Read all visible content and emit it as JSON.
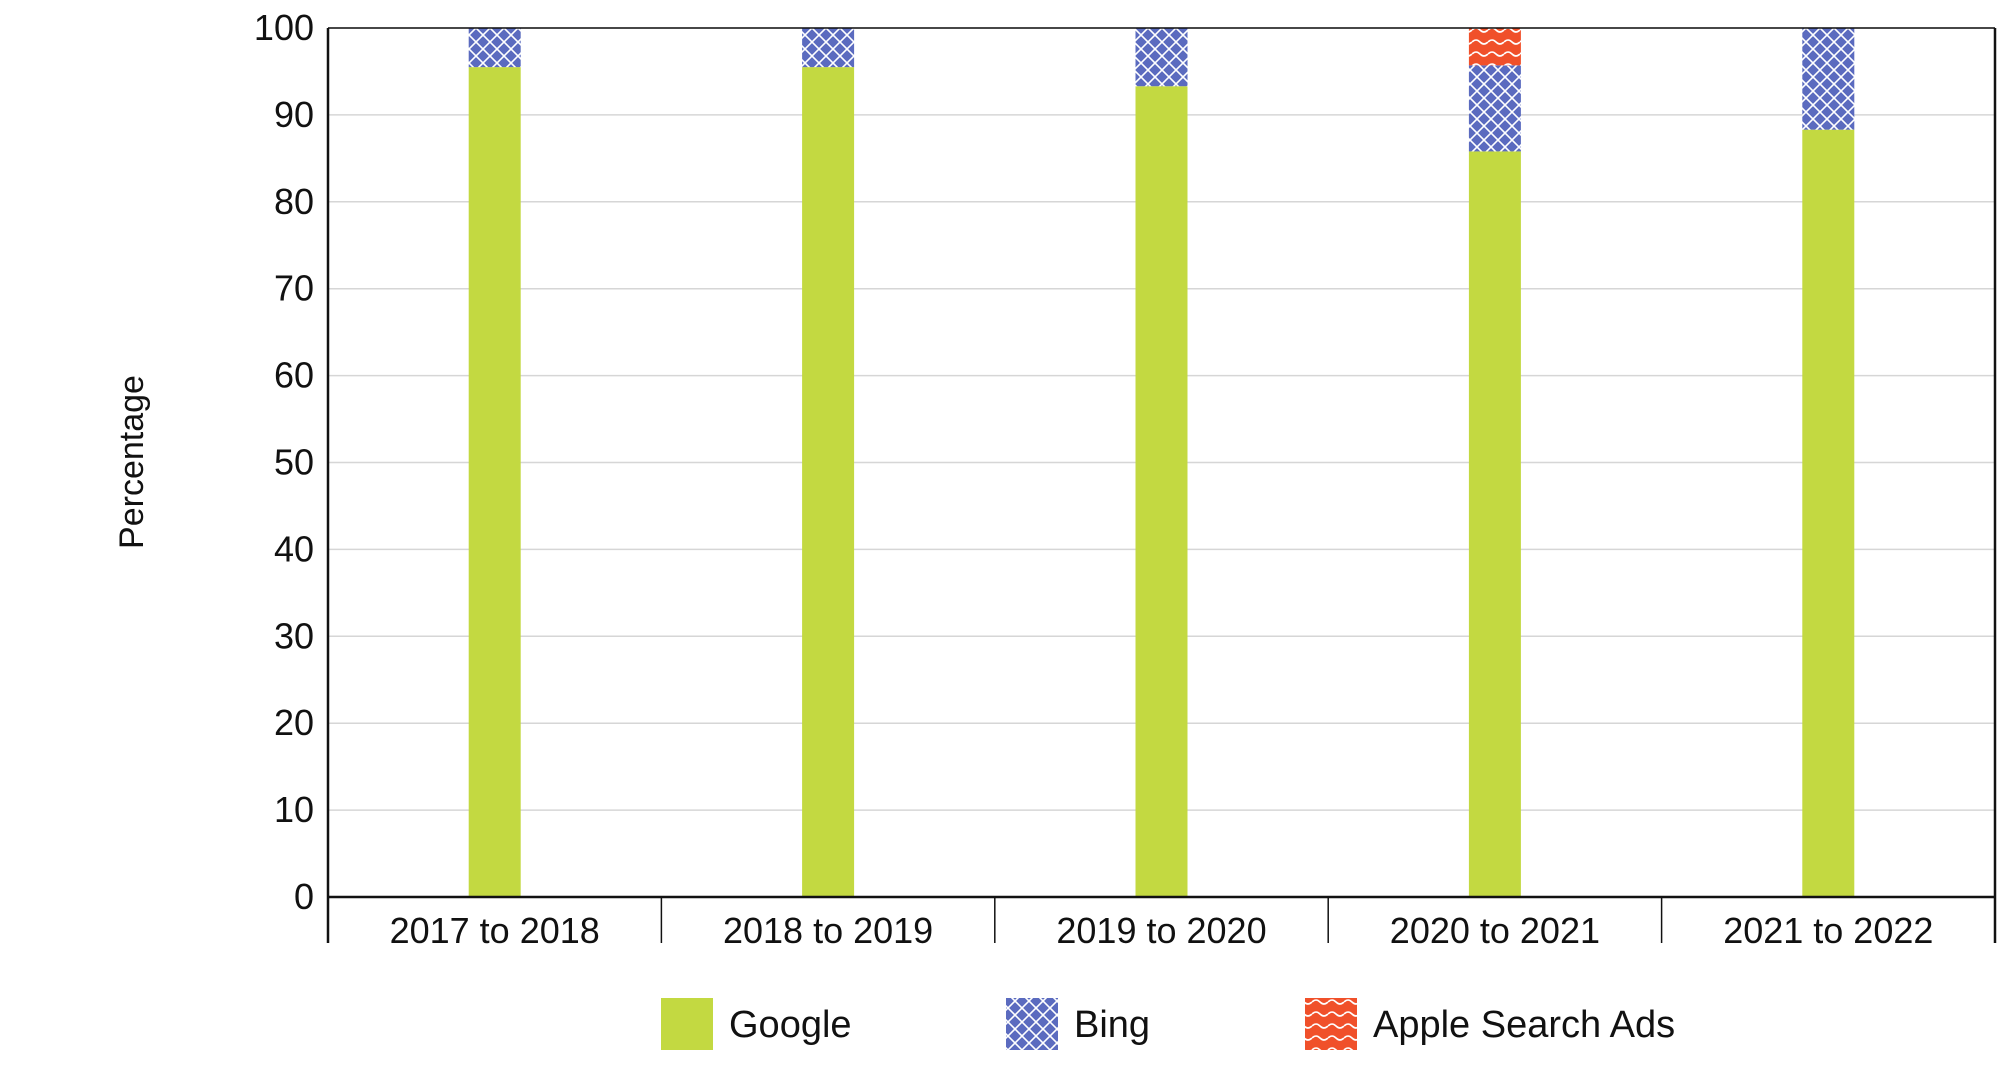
{
  "chart_data": {
    "type": "bar",
    "stacked": true,
    "title": "",
    "xlabel": "",
    "ylabel": "Percentage",
    "ylim": [
      0,
      100
    ],
    "yticks": [
      0,
      10,
      20,
      30,
      40,
      50,
      60,
      70,
      80,
      90,
      100
    ],
    "grid": true,
    "legend_position": "bottom",
    "categories": [
      "2017 to 2018",
      "2018 to 2019",
      "2019 to 2020",
      "2020 to 2021",
      "2021 to 2022"
    ],
    "series": [
      {
        "name": "Google",
        "values": [
          95.5,
          95.5,
          93.3,
          85.8,
          88.3
        ],
        "color": "#c3d941",
        "pattern": "solid"
      },
      {
        "name": "Bing",
        "values": [
          4.5,
          4.5,
          6.7,
          9.9,
          11.7
        ],
        "color": "#5b6bbf",
        "pattern": "crosshatch"
      },
      {
        "name": "Apple Search Ads",
        "values": [
          0,
          0,
          0,
          4.3,
          0
        ],
        "color": "#f0502a",
        "pattern": "wave"
      }
    ]
  }
}
